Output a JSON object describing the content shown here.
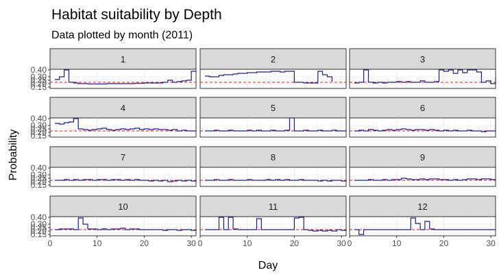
{
  "chart_data": {
    "type": "line",
    "title": "Habitat suitability by Depth",
    "subtitle": "Data plotted by month (2011)",
    "xlabel": "Day",
    "ylabel": "Probability",
    "xlim": [
      0,
      31
    ],
    "ylim": [
      0.13,
      0.41
    ],
    "x_ticks": [
      0,
      10,
      20,
      30
    ],
    "y_ticks": [
      0.15,
      0.2,
      0.25,
      0.3,
      0.4
    ],
    "y_tick_labels": [
      "0.15",
      "0.20",
      "0.25",
      "0.30",
      "0.40"
    ],
    "reference_line": 0.22,
    "grid": true,
    "facets": [
      "1",
      "2",
      "3",
      "4",
      "5",
      "6",
      "7",
      "8",
      "9",
      "10",
      "11",
      "12"
    ],
    "colors": {
      "series": "#1b1b8f",
      "reference": "#ff0000",
      "strip_fill": "#d9d9d9",
      "grid": "#ebebeb"
    },
    "series": [
      {
        "facet": "1",
        "x": [
          1,
          2,
          3,
          4,
          5,
          6,
          8,
          10,
          12,
          14,
          16,
          18,
          20,
          22,
          24,
          25,
          26,
          27,
          28,
          29,
          30,
          31
        ],
        "y": [
          0.26,
          0.3,
          0.4,
          0.22,
          0.21,
          0.2,
          0.195,
          0.195,
          0.2,
          0.2,
          0.2,
          0.205,
          0.21,
          0.21,
          0.22,
          0.25,
          0.22,
          0.23,
          0.24,
          0.25,
          0.38,
          0.37
        ]
      },
      {
        "facet": "2",
        "x": [
          1,
          2,
          3,
          4,
          5,
          6,
          7,
          8,
          9,
          10,
          11,
          12,
          13,
          14,
          15,
          16,
          17,
          18,
          19,
          20,
          21,
          22,
          23,
          24,
          25,
          26,
          27,
          28
        ],
        "y": [
          0.31,
          0.3,
          0.3,
          0.32,
          0.33,
          0.33,
          0.34,
          0.35,
          0.35,
          0.36,
          0.36,
          0.37,
          0.37,
          0.37,
          0.38,
          0.38,
          0.37,
          0.38,
          0.38,
          0.22,
          0.22,
          0.21,
          0.21,
          0.21,
          0.38,
          0.33,
          0.3,
          0.23
        ]
      },
      {
        "facet": "3",
        "x": [
          1,
          2,
          3,
          4,
          5,
          6,
          7,
          8,
          9,
          10,
          11,
          12,
          13,
          14,
          15,
          16,
          17,
          18,
          19,
          20,
          21,
          22,
          23,
          24,
          25,
          26,
          27,
          28,
          29,
          30,
          31
        ],
        "y": [
          0.21,
          0.22,
          0.4,
          0.22,
          0.21,
          0.22,
          0.21,
          0.22,
          0.22,
          0.23,
          0.22,
          0.23,
          0.22,
          0.22,
          0.24,
          0.22,
          0.22,
          0.23,
          0.4,
          0.38,
          0.4,
          0.35,
          0.4,
          0.36,
          0.4,
          0.4,
          0.37,
          0.22,
          0.24,
          0.2,
          0.3
        ]
      },
      {
        "facet": "4",
        "x": [
          1,
          2,
          3,
          4,
          5,
          6,
          7,
          8,
          9,
          10,
          11,
          12,
          13,
          14,
          15,
          16,
          17,
          18,
          19,
          20,
          21,
          22,
          23,
          24,
          25,
          26,
          27,
          28,
          29,
          30,
          31
        ],
        "y": [
          0.33,
          0.32,
          0.34,
          0.35,
          0.4,
          0.25,
          0.24,
          0.23,
          0.24,
          0.25,
          0.26,
          0.24,
          0.23,
          0.24,
          0.25,
          0.24,
          0.25,
          0.26,
          0.24,
          0.25,
          0.24,
          0.25,
          0.24,
          0.24,
          0.23,
          0.24,
          0.22,
          0.23,
          0.22,
          0.22,
          0.21
        ]
      },
      {
        "facet": "5",
        "x": [
          1,
          2,
          3,
          4,
          5,
          6,
          7,
          8,
          9,
          10,
          11,
          12,
          13,
          14,
          15,
          16,
          17,
          18,
          19,
          20,
          21,
          22,
          23,
          24,
          25,
          26,
          27,
          28,
          29,
          30,
          31
        ],
        "y": [
          0.22,
          0.22,
          0.23,
          0.22,
          0.22,
          0.23,
          0.22,
          0.22,
          0.22,
          0.23,
          0.22,
          0.23,
          0.22,
          0.22,
          0.23,
          0.22,
          0.22,
          0.23,
          0.41,
          0.22,
          0.22,
          0.23,
          0.22,
          0.22,
          0.23,
          0.22,
          0.22,
          0.23,
          0.22,
          0.22,
          0.22
        ]
      },
      {
        "facet": "6",
        "x": [
          1,
          2,
          3,
          4,
          5,
          6,
          7,
          8,
          9,
          10,
          11,
          12,
          13,
          14,
          15,
          16,
          17,
          18,
          19,
          20,
          21,
          22,
          23,
          24,
          25,
          26,
          27,
          28,
          29,
          30,
          31
        ],
        "y": [
          0.22,
          0.23,
          0.22,
          0.24,
          0.23,
          0.22,
          0.23,
          0.24,
          0.23,
          0.24,
          0.25,
          0.24,
          0.23,
          0.24,
          0.24,
          0.23,
          0.24,
          0.23,
          0.22,
          0.23,
          0.22,
          0.23,
          0.22,
          0.22,
          0.23,
          0.22,
          0.22,
          0.21,
          0.22,
          0.22,
          0.21
        ]
      },
      {
        "facet": "7",
        "x": [
          1,
          2,
          3,
          4,
          5,
          6,
          7,
          8,
          9,
          10,
          11,
          12,
          13,
          14,
          15,
          16,
          17,
          18,
          19,
          20,
          21,
          22,
          23,
          24,
          25,
          26,
          27,
          28,
          29,
          30,
          31
        ],
        "y": [
          0.22,
          0.22,
          0.23,
          0.22,
          0.23,
          0.22,
          0.23,
          0.23,
          0.22,
          0.23,
          0.23,
          0.22,
          0.23,
          0.23,
          0.22,
          0.23,
          0.22,
          0.23,
          0.22,
          0.22,
          0.21,
          0.22,
          0.21,
          0.22,
          0.2,
          0.21,
          0.22,
          0.21,
          0.22,
          0.21,
          0.22
        ]
      },
      {
        "facet": "8",
        "x": [
          1,
          2,
          3,
          4,
          5,
          6,
          7,
          8,
          9,
          10,
          11,
          12,
          13,
          14,
          15,
          16,
          17,
          18,
          19,
          20,
          21,
          22,
          23,
          24,
          25,
          26,
          27,
          28,
          29,
          30,
          31
        ],
        "y": [
          0.22,
          0.22,
          0.23,
          0.22,
          0.22,
          0.23,
          0.22,
          0.22,
          0.22,
          0.23,
          0.22,
          0.22,
          0.22,
          0.23,
          0.22,
          0.23,
          0.22,
          0.23,
          0.22,
          0.22,
          0.23,
          0.22,
          0.22,
          0.22,
          0.21,
          0.22,
          0.21,
          0.22,
          0.22,
          0.21,
          0.22
        ]
      },
      {
        "facet": "9",
        "x": [
          1,
          2,
          3,
          4,
          5,
          6,
          7,
          8,
          9,
          10,
          11,
          12,
          13,
          14,
          15,
          16,
          17,
          18,
          19,
          20,
          21,
          22,
          23,
          24,
          25,
          26,
          27,
          28,
          29,
          30,
          31
        ],
        "y": [
          0.22,
          0.22,
          0.22,
          0.23,
          0.22,
          0.22,
          0.23,
          0.22,
          0.23,
          0.23,
          0.25,
          0.24,
          0.23,
          0.23,
          0.24,
          0.23,
          0.24,
          0.24,
          0.23,
          0.23,
          0.22,
          0.23,
          0.22,
          0.23,
          0.24,
          0.24,
          0.23,
          0.24,
          0.24,
          0.23,
          0.23
        ]
      },
      {
        "facet": "10",
        "x": [
          1,
          2,
          3,
          4,
          5,
          6,
          7,
          8,
          9,
          10,
          11,
          12,
          13,
          14,
          15,
          16,
          17,
          18,
          19,
          20,
          21,
          22,
          23,
          24,
          25,
          26,
          27,
          28,
          29,
          30,
          31
        ],
        "y": [
          0.22,
          0.23,
          0.23,
          0.23,
          0.22,
          0.39,
          0.3,
          0.23,
          0.23,
          0.22,
          0.23,
          0.22,
          0.23,
          0.23,
          0.24,
          0.22,
          0.23,
          0.23,
          0.22,
          0.22,
          0.22,
          0.22,
          0.22,
          0.21,
          0.22,
          0.22,
          0.21,
          0.22,
          0.22,
          0.21,
          0.22
        ]
      },
      {
        "facet": "11",
        "x": [
          1,
          2,
          3,
          4,
          5,
          6,
          7,
          8,
          9,
          10,
          11,
          12,
          13,
          14,
          15,
          16,
          17,
          18,
          19,
          20,
          21,
          22,
          23,
          24,
          25,
          26,
          27,
          28,
          29,
          30,
          31
        ],
        "y": [
          0.22,
          0.22,
          0.22,
          0.4,
          0.22,
          0.4,
          0.23,
          0.22,
          0.22,
          0.22,
          0.22,
          0.38,
          0.22,
          0.22,
          0.22,
          0.22,
          0.22,
          0.22,
          0.22,
          0.39,
          0.4,
          0.22,
          0.21,
          0.2,
          0.21,
          0.2,
          0.21,
          0.2,
          0.22,
          0.21,
          0.22
        ]
      },
      {
        "facet": "12",
        "x": [
          1,
          2,
          3,
          4,
          5,
          6,
          7,
          8,
          9,
          10,
          11,
          12,
          13,
          14,
          15,
          16,
          17,
          18,
          19,
          20,
          21,
          22,
          23,
          24,
          25,
          26,
          27,
          28,
          29,
          30,
          31
        ],
        "y": [
          0.22,
          0.15,
          0.22,
          0.22,
          0.22,
          0.22,
          0.22,
          0.22,
          0.22,
          0.22,
          0.22,
          0.22,
          0.39,
          0.31,
          0.22,
          0.34,
          0.23,
          0.22,
          0.22,
          0.22,
          0.22,
          0.22,
          0.22,
          0.22,
          0.22,
          0.22,
          0.22,
          0.22,
          0.22,
          0.22,
          0.22
        ]
      }
    ]
  }
}
